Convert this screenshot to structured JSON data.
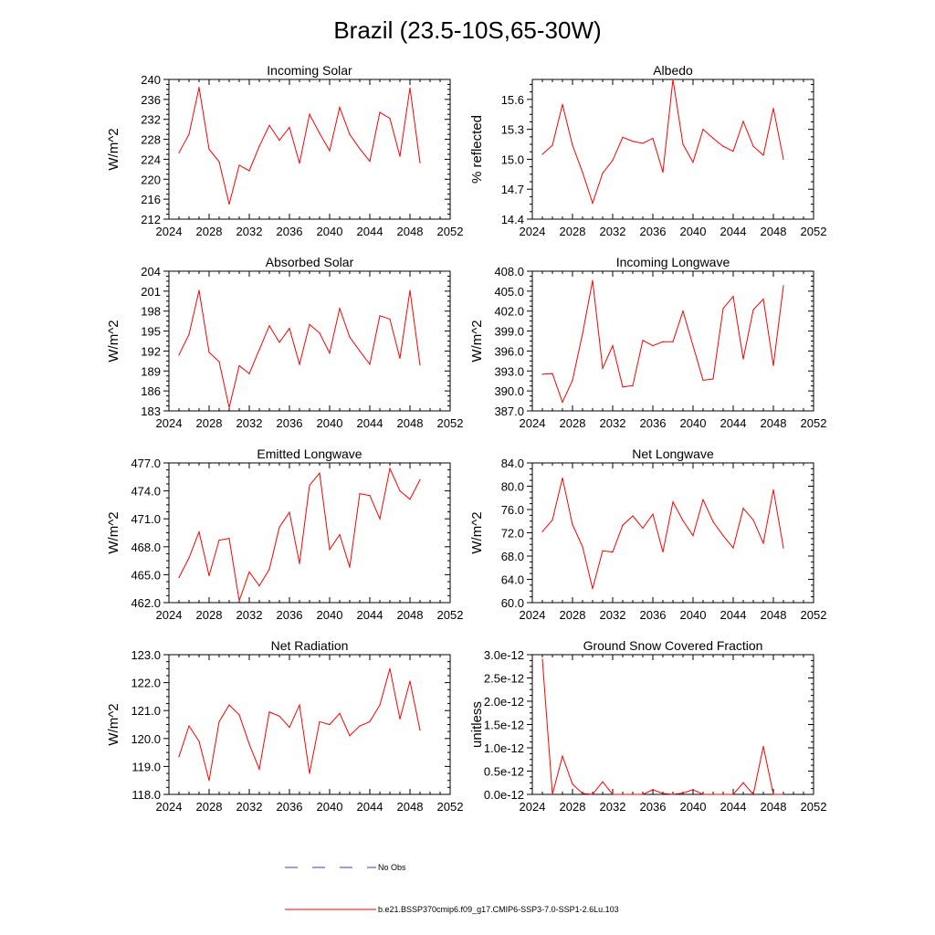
{
  "figure": {
    "title": "Brazil (23.5-10S,65-30W)",
    "line_color": "#ff0000",
    "obs_color": "#3a3ad6"
  },
  "legend": {
    "obs_label": "No Obs",
    "model_label": "b.e21.BSSP370cmip6.f09_g17.CMIP6-SSP3-7.0-SSP1-2.6Lu.103"
  },
  "chart_data": [
    {
      "type": "line",
      "title": "Incoming Solar",
      "ylabel": "W/m^2",
      "xlim": [
        2024,
        2052
      ],
      "xticks": [
        2024,
        2028,
        2032,
        2036,
        2040,
        2044,
        2048,
        2052
      ],
      "xtick_labels": [
        "2024",
        "2028",
        "2032",
        "2036",
        "2040",
        "2044",
        "2048",
        "2052"
      ],
      "ylim": [
        212,
        240
      ],
      "yticks": [
        212,
        216,
        220,
        224,
        228,
        232,
        236,
        240
      ],
      "ytick_labels": [
        "212",
        "216",
        "220",
        "224",
        "228",
        "232",
        "236",
        "240"
      ],
      "x": [
        2025,
        2026,
        2027,
        2028,
        2029,
        2030,
        2031,
        2032,
        2033,
        2034,
        2035,
        2036,
        2037,
        2038,
        2039,
        2040,
        2041,
        2042,
        2043,
        2044,
        2045,
        2046,
        2047,
        2048,
        2049
      ],
      "series": [
        {
          "name": "b.e21.BSSP370cmip6.f09_g17.CMIP6-SSP3-7.0-SSP1-2.6Lu.103",
          "values": [
            225.3,
            229.0,
            238.4,
            226.0,
            223.5,
            215.0,
            222.8,
            221.7,
            226.6,
            230.8,
            227.8,
            230.4,
            223.2,
            233.0,
            229.2,
            225.7,
            234.4,
            229.0,
            226.1,
            223.6,
            233.4,
            232.2,
            224.6,
            238.3,
            223.3
          ]
        }
      ]
    },
    {
      "type": "line",
      "title": "Albedo",
      "ylabel": "% reflected",
      "xlim": [
        2024,
        2052
      ],
      "xticks": [
        2024,
        2028,
        2032,
        2036,
        2040,
        2044,
        2048,
        2052
      ],
      "xtick_labels": [
        "2024",
        "2028",
        "2032",
        "2036",
        "2040",
        "2044",
        "2048",
        "2052"
      ],
      "ylim": [
        14.4,
        15.8
      ],
      "yticks": [
        14.4,
        14.7,
        15.0,
        15.3,
        15.6
      ],
      "ytick_labels": [
        "14.4",
        "14.7",
        "15.0",
        "15.3",
        "15.6"
      ],
      "x": [
        2025,
        2026,
        2027,
        2028,
        2029,
        2030,
        2031,
        2032,
        2033,
        2034,
        2035,
        2036,
        2037,
        2038,
        2039,
        2040,
        2041,
        2042,
        2043,
        2044,
        2045,
        2046,
        2047,
        2048,
        2049
      ],
      "series": [
        {
          "name": "b.e21.BSSP370cmip6.f09_g17.CMIP6-SSP3-7.0-SSP1-2.6Lu.103",
          "values": [
            15.05,
            15.14,
            15.55,
            15.14,
            14.87,
            14.56,
            14.86,
            14.99,
            15.22,
            15.18,
            15.16,
            15.21,
            14.87,
            15.8,
            15.15,
            14.97,
            15.3,
            15.21,
            15.13,
            15.08,
            15.38,
            15.13,
            15.04,
            15.51,
            15.0
          ]
        }
      ]
    },
    {
      "type": "line",
      "title": "Absorbed Solar",
      "ylabel": "W/m^2",
      "xlim": [
        2024,
        2052
      ],
      "xticks": [
        2024,
        2028,
        2032,
        2036,
        2040,
        2044,
        2048,
        2052
      ],
      "xtick_labels": [
        "2024",
        "2028",
        "2032",
        "2036",
        "2040",
        "2044",
        "2048",
        "2052"
      ],
      "ylim": [
        183,
        204
      ],
      "yticks": [
        183,
        186,
        189,
        192,
        195,
        198,
        201,
        204
      ],
      "ytick_labels": [
        "183",
        "186",
        "189",
        "192",
        "195",
        "198",
        "201",
        "204"
      ],
      "x": [
        2025,
        2026,
        2027,
        2028,
        2029,
        2030,
        2031,
        2032,
        2033,
        2034,
        2035,
        2036,
        2037,
        2038,
        2039,
        2040,
        2041,
        2042,
        2043,
        2044,
        2045,
        2046,
        2047,
        2048,
        2049
      ],
      "series": [
        {
          "name": "b.e21.BSSP370cmip6.f09_g17.CMIP6-SSP3-7.0-SSP1-2.6Lu.103",
          "values": [
            191.4,
            194.5,
            201.1,
            191.8,
            190.4,
            183.5,
            189.8,
            188.6,
            192.2,
            195.8,
            193.3,
            195.4,
            190.0,
            196.0,
            194.7,
            191.7,
            198.4,
            194.1,
            192.0,
            190.0,
            197.3,
            196.8,
            190.9,
            201.1,
            189.9
          ]
        }
      ]
    },
    {
      "type": "line",
      "title": "Incoming Longwave",
      "ylabel": "W/m^2",
      "xlim": [
        2024,
        2052
      ],
      "xticks": [
        2024,
        2028,
        2032,
        2036,
        2040,
        2044,
        2048,
        2052
      ],
      "xtick_labels": [
        "2024",
        "2028",
        "2032",
        "2036",
        "2040",
        "2044",
        "2048",
        "2052"
      ],
      "ylim": [
        387.0,
        408.0
      ],
      "yticks": [
        387.0,
        390.0,
        393.0,
        396.0,
        399.0,
        402.0,
        405.0,
        408.0
      ],
      "ytick_labels": [
        "387.0",
        "390.0",
        "393.0",
        "396.0",
        "399.0",
        "402.0",
        "405.0",
        "408.0"
      ],
      "x": [
        2025,
        2026,
        2027,
        2028,
        2029,
        2030,
        2031,
        2032,
        2033,
        2034,
        2035,
        2036,
        2037,
        2038,
        2039,
        2040,
        2041,
        2042,
        2043,
        2044,
        2045,
        2046,
        2047,
        2048,
        2049
      ],
      "series": [
        {
          "name": "b.e21.BSSP370cmip6.f09_g17.CMIP6-SSP3-7.0-SSP1-2.6Lu.103",
          "values": [
            392.5,
            392.6,
            388.3,
            391.6,
            398.6,
            406.6,
            393.4,
            396.8,
            390.6,
            390.8,
            397.6,
            396.8,
            397.4,
            397.4,
            402.0,
            396.8,
            391.6,
            391.8,
            402.4,
            404.2,
            394.8,
            402.2,
            403.8,
            393.8,
            405.8
          ]
        }
      ]
    },
    {
      "type": "line",
      "title": "Emitted Longwave",
      "ylabel": "W/m^2",
      "xlim": [
        2024,
        2052
      ],
      "xticks": [
        2024,
        2028,
        2032,
        2036,
        2040,
        2044,
        2048,
        2052
      ],
      "xtick_labels": [
        "2024",
        "2028",
        "2032",
        "2036",
        "2040",
        "2044",
        "2048",
        "2052"
      ],
      "ylim": [
        462.0,
        477.0
      ],
      "yticks": [
        462.0,
        465.0,
        468.0,
        471.0,
        474.0,
        477.0
      ],
      "ytick_labels": [
        "462.0",
        "465.0",
        "468.0",
        "471.0",
        "474.0",
        "477.0"
      ],
      "x": [
        2025,
        2026,
        2027,
        2028,
        2029,
        2030,
        2031,
        2032,
        2033,
        2034,
        2035,
        2036,
        2037,
        2038,
        2039,
        2040,
        2041,
        2042,
        2043,
        2044,
        2045,
        2046,
        2047,
        2048,
        2049
      ],
      "series": [
        {
          "name": "b.e21.BSSP370cmip6.f09_g17.CMIP6-SSP3-7.0-SSP1-2.6Lu.103",
          "values": [
            464.7,
            466.8,
            469.6,
            464.9,
            468.7,
            468.9,
            462.2,
            465.3,
            463.8,
            465.6,
            470.1,
            471.7,
            466.2,
            474.6,
            475.9,
            467.7,
            469.3,
            465.8,
            473.7,
            473.5,
            471.0,
            476.4,
            474.0,
            473.1,
            475.2
          ]
        }
      ]
    },
    {
      "type": "line",
      "title": "Net Longwave",
      "ylabel": "W/m^2",
      "xlim": [
        2024,
        2052
      ],
      "xticks": [
        2024,
        2028,
        2032,
        2036,
        2040,
        2044,
        2048,
        2052
      ],
      "xtick_labels": [
        "2024",
        "2028",
        "2032",
        "2036",
        "2040",
        "2044",
        "2048",
        "2052"
      ],
      "ylim": [
        60.0,
        84.0
      ],
      "yticks": [
        60.0,
        64.0,
        68.0,
        72.0,
        76.0,
        80.0,
        84.0
      ],
      "ytick_labels": [
        "60.0",
        "64.0",
        "68.0",
        "72.0",
        "76.0",
        "80.0",
        "84.0"
      ],
      "x": [
        2025,
        2026,
        2027,
        2028,
        2029,
        2030,
        2031,
        2032,
        2033,
        2034,
        2035,
        2036,
        2037,
        2038,
        2039,
        2040,
        2041,
        2042,
        2043,
        2044,
        2045,
        2046,
        2047,
        2048,
        2049
      ],
      "series": [
        {
          "name": "b.e21.BSSP370cmip6.f09_g17.CMIP6-SSP3-7.0-SSP1-2.6Lu.103",
          "values": [
            72.2,
            74.2,
            81.4,
            73.4,
            69.6,
            62.4,
            68.9,
            68.7,
            73.3,
            74.9,
            72.8,
            75.2,
            68.7,
            77.3,
            74.1,
            71.5,
            77.7,
            73.9,
            71.5,
            69.4,
            76.2,
            74.2,
            70.2,
            79.4,
            69.4
          ]
        }
      ]
    },
    {
      "type": "line",
      "title": "Net Radiation",
      "ylabel": "W/m^2",
      "xlim": [
        2024,
        2052
      ],
      "xticks": [
        2024,
        2028,
        2032,
        2036,
        2040,
        2044,
        2048,
        2052
      ],
      "xtick_labels": [
        "2024",
        "2028",
        "2032",
        "2036",
        "2040",
        "2044",
        "2048",
        "2052"
      ],
      "ylim": [
        118.0,
        123.0
      ],
      "yticks": [
        118.0,
        119.0,
        120.0,
        121.0,
        122.0,
        123.0
      ],
      "ytick_labels": [
        "118.0",
        "119.0",
        "120.0",
        "121.0",
        "122.0",
        "123.0"
      ],
      "x": [
        2025,
        2026,
        2027,
        2028,
        2029,
        2030,
        2031,
        2032,
        2033,
        2034,
        2035,
        2036,
        2037,
        2038,
        2039,
        2040,
        2041,
        2042,
        2043,
        2044,
        2045,
        2046,
        2047,
        2048,
        2049
      ],
      "series": [
        {
          "name": "b.e21.BSSP370cmip6.f09_g17.CMIP6-SSP3-7.0-SSP1-2.6Lu.103",
          "values": [
            119.35,
            120.45,
            119.9,
            118.5,
            120.6,
            121.2,
            120.85,
            119.8,
            118.9,
            120.95,
            120.8,
            120.4,
            121.2,
            118.75,
            120.6,
            120.5,
            120.9,
            120.1,
            120.45,
            120.6,
            121.2,
            122.5,
            120.7,
            122.05,
            120.3
          ]
        }
      ]
    },
    {
      "type": "line",
      "title": "Ground Snow Covered Fraction",
      "ylabel": "unitless",
      "xlim": [
        2024,
        2052
      ],
      "xticks": [
        2024,
        2028,
        2032,
        2036,
        2040,
        2044,
        2048,
        2052
      ],
      "xtick_labels": [
        "2024",
        "2028",
        "2032",
        "2036",
        "2040",
        "2044",
        "2048",
        "2052"
      ],
      "ylim": [
        0.0,
        3.0
      ],
      "yticks": [
        0.0,
        0.5,
        1.0,
        1.5,
        2.0,
        2.5,
        3.0
      ],
      "ytick_labels": [
        "0.0e-12",
        "0.5e-12",
        "1.0e-12",
        "1.5e-12",
        "2.0e-12",
        "2.5e-12",
        "3.0e-12"
      ],
      "value_scale": "1e-12",
      "x": [
        2025,
        2026,
        2027,
        2028,
        2029,
        2030,
        2031,
        2032,
        2033,
        2034,
        2035,
        2036,
        2037,
        2038,
        2039,
        2040,
        2041,
        2042,
        2043,
        2044,
        2045,
        2046,
        2047,
        2048,
        2049
      ],
      "series": [
        {
          "name": "b.e21.BSSP370cmip6.f09_g17.CMIP6-SSP3-7.0-SSP1-2.6Lu.103",
          "values": [
            2.9,
            0.0,
            0.82,
            0.22,
            0.02,
            0.0,
            0.27,
            0.0,
            0.0,
            0.0,
            0.0,
            0.1,
            0.02,
            0.0,
            0.03,
            0.1,
            0.0,
            0.0,
            0.0,
            0.0,
            0.25,
            0.0,
            1.03,
            0.0,
            0.0
          ]
        }
      ]
    }
  ]
}
